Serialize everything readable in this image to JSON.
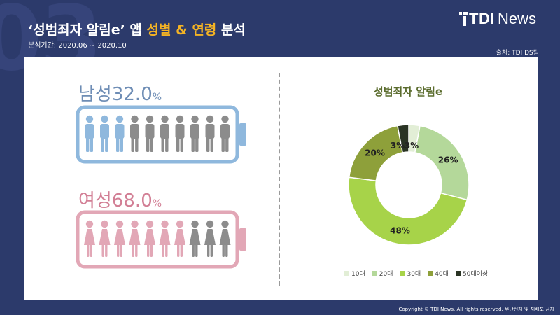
{
  "background_number": "03",
  "header": {
    "title_part1": "‘성범죄자 알림e’ 앱 ",
    "title_highlight1": "성별",
    "title_amp": " & ",
    "title_highlight2": "연령",
    "title_part2": " 분석",
    "period": "분석기간: 2020.06 ~ 2020.10",
    "source": "출처: TDI DS팀"
  },
  "logo": {
    "tdi": "TDI",
    "news": "News"
  },
  "gender": {
    "male": {
      "label": "남성",
      "value": "32.0",
      "unit": "%",
      "fraction": 0.32,
      "color": "#8fb8dd"
    },
    "female": {
      "label": "여성",
      "value": "68.0",
      "unit": "%",
      "fraction": 0.68,
      "color": "#e2a7b6"
    },
    "icon_inactive_color": "#8c8c8c"
  },
  "chart_data": {
    "type": "pie",
    "donut": true,
    "title": "성범죄자 알림e",
    "categories": [
      "10대",
      "20대",
      "30대",
      "40대",
      "50대이상"
    ],
    "values": [
      3,
      26,
      48,
      20,
      3
    ],
    "labels": [
      "3%",
      "26%",
      "48%",
      "20%",
      "3%"
    ],
    "colors": [
      "#e2eed6",
      "#b4d89a",
      "#a7d349",
      "#8ea03a",
      "#2a3424"
    ],
    "legend": "bottom"
  },
  "footer": {
    "copyright": "Copyright © TDI News. All rights reserved. 무단전재 및 재배포 금지"
  }
}
